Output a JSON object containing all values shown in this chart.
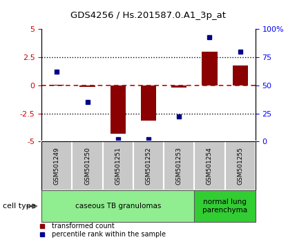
{
  "title": "GDS4256 / Hs.201587.0.A1_3p_at",
  "samples": [
    "GSM501249",
    "GSM501250",
    "GSM501251",
    "GSM501252",
    "GSM501253",
    "GSM501254",
    "GSM501255"
  ],
  "transformed_count": [
    0.05,
    -0.12,
    -4.3,
    -3.15,
    -0.18,
    3.0,
    1.8
  ],
  "percentile_rank": [
    62,
    35,
    2,
    2,
    22,
    93,
    80
  ],
  "ylim_left": [
    -5,
    5
  ],
  "ylim_right": [
    0,
    100
  ],
  "yticks_left": [
    -5,
    -2.5,
    0,
    2.5,
    5
  ],
  "yticks_right": [
    0,
    25,
    50,
    75,
    100
  ],
  "bar_color": "#8B0000",
  "dot_color": "#00008B",
  "zero_line_color": "#CC0000",
  "sample_box_color": "#C8C8C8",
  "group1_color": "#90EE90",
  "group2_color": "#32CD32",
  "group1_label": "caseous TB granulomas",
  "group2_label": "normal lung\nparenchyma",
  "group1_indices": [
    0,
    1,
    2,
    3,
    4
  ],
  "group2_indices": [
    5,
    6
  ],
  "cell_type_label": "cell type",
  "legend_entries": [
    "transformed count",
    "percentile rank within the sample"
  ],
  "background_color": "#ffffff"
}
